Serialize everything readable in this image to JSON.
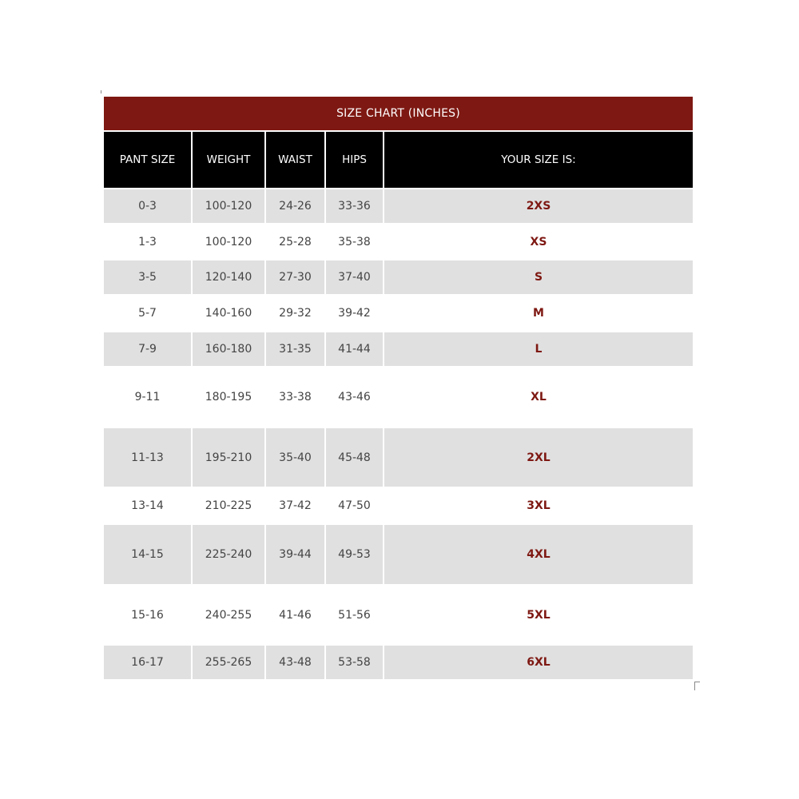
{
  "title": "SIZE CHART (INCHES)",
  "headers": [
    "PANT SIZE",
    "WEIGHT",
    "WAIST",
    "HIPS",
    "YOUR SIZE IS:"
  ],
  "rows": [
    [
      "0-3",
      "100-120",
      "24-26",
      "33-36",
      "2XS"
    ],
    [
      "1-3",
      "100-120",
      "25-28",
      "35-38",
      "XS"
    ],
    [
      "3-5",
      "120-140",
      "27-30",
      "37-40",
      "S"
    ],
    [
      "5-7",
      "140-160",
      "29-32",
      "39-42",
      "M"
    ],
    [
      "7-9",
      "160-180",
      "31-35",
      "41-44",
      "L"
    ],
    [
      "9-11",
      "180-195",
      "33-38",
      "43-46",
      "XL"
    ],
    [
      "11-13",
      "195-210",
      "35-40",
      "45-48",
      "2XL"
    ],
    [
      "13-14",
      "210-225",
      "37-42",
      "47-50",
      "3XL"
    ],
    [
      "14-15",
      "225-240",
      "39-44",
      "49-53",
      "4XL"
    ],
    [
      "15-16",
      "240-255",
      "41-46",
      "51-56",
      "5XL"
    ],
    [
      "16-17",
      "255-265",
      "43-48",
      "53-58",
      "6XL"
    ]
  ],
  "colors": {
    "title_bg": "#7e1812",
    "header_bg": "#000000",
    "stripe": "#e0e0e0",
    "size_text": "#7e1812"
  }
}
